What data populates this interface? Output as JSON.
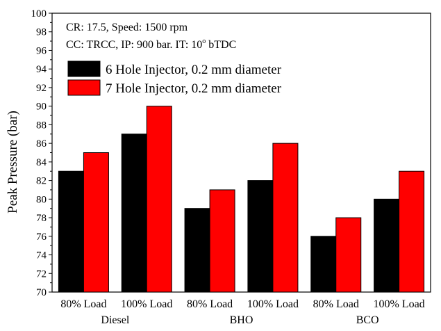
{
  "chart_data": {
    "type": "bar",
    "title": "",
    "ylabel": "Peak Pressure (bar)",
    "xlabel": "",
    "ylim": [
      70,
      100
    ],
    "y_ticks": [
      70,
      72,
      74,
      76,
      78,
      80,
      82,
      84,
      86,
      88,
      90,
      92,
      94,
      96,
      98,
      100
    ],
    "annotations": {
      "line1_prefix": "CR: 17.5, Speed: 1500 rpm",
      "line2_prefix": "CC: TRCC, IP: 900 bar. IT: 10",
      "line2_degree": "o",
      "line2_suffix": " bTDC"
    },
    "groups": [
      {
        "name": "Diesel",
        "categories": [
          "80% Load",
          "100% Load"
        ]
      },
      {
        "name": "BHO",
        "categories": [
          "80% Load",
          "100% Load"
        ]
      },
      {
        "name": "BCO",
        "categories": [
          "80% Load",
          "100% Load"
        ]
      }
    ],
    "categories": [
      "80% Load",
      "100% Load",
      "80% Load",
      "100% Load",
      "80% Load",
      "100% Load"
    ],
    "series": [
      {
        "name": "6 Hole Injector, 0.2 mm diameter",
        "color": "#000000",
        "values": [
          83,
          87,
          79,
          82,
          76,
          80
        ]
      },
      {
        "name": "7 Hole Injector, 0.2 mm diameter",
        "color": "#ff0000",
        "values": [
          85,
          90,
          81,
          86,
          78,
          83
        ]
      }
    ],
    "grid": false,
    "legend_position": "top-left"
  }
}
